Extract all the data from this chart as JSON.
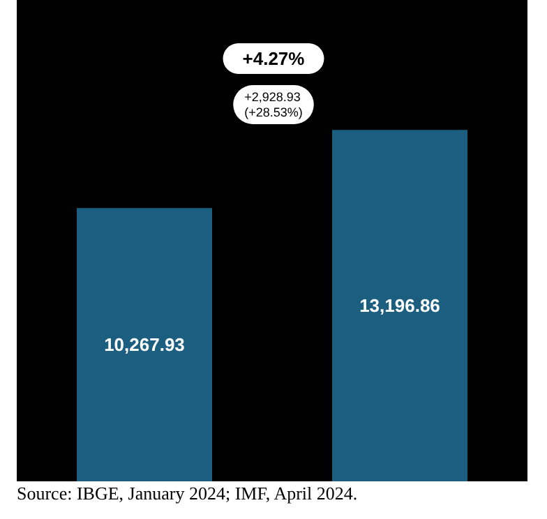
{
  "chart_data": {
    "type": "bar",
    "categories": [
      null,
      null
    ],
    "series": [
      {
        "color": "#1b5e80",
        "values": [
          10267.93,
          13196.86
        ],
        "value_labels": [
          "10,267.93",
          "13,196.86"
        ]
      }
    ],
    "annotations": [
      "+4.27%",
      "+2,928.93\n(+28.53%)",
      "Source: IBGE, January 2024; IMF, April 2024."
    ]
  }
}
